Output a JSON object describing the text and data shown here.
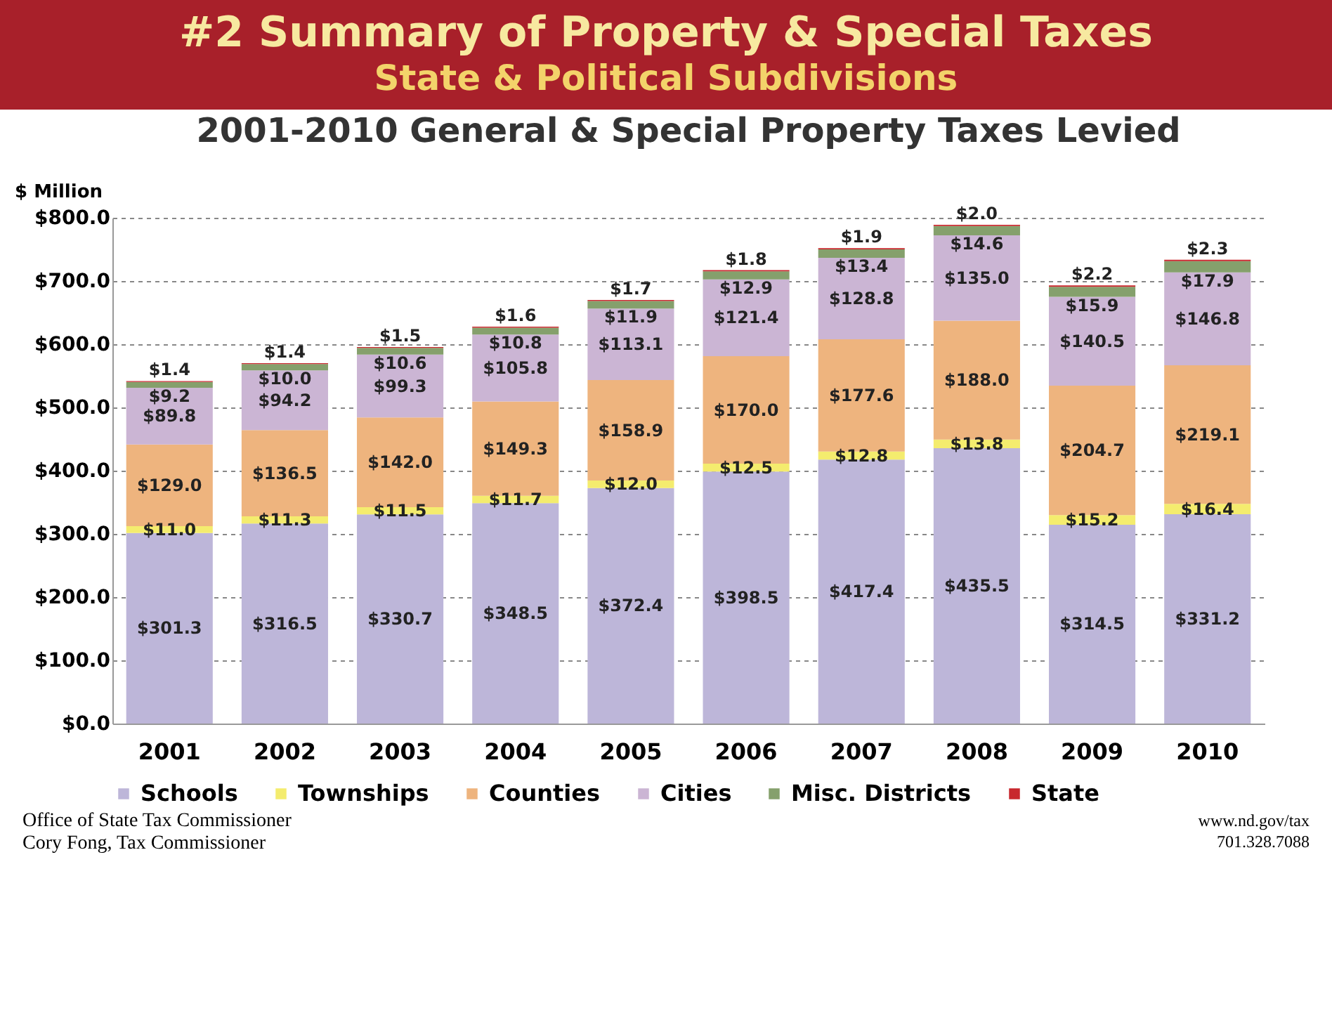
{
  "chart_data": {
    "type": "bar",
    "stacked": true,
    "title": "2001-2010 General & Special Property Taxes Levied",
    "ylabel": "$ Million",
    "annotations": [
      "#2 Summary of Property & Special Taxes",
      "State & Political Subdivisions",
      "Office of State Tax Commissioner",
      "Cory Fong, Tax Commissioner",
      "www.nd.gov/tax",
      "701.328.7088"
    ],
    "categories": [
      "2001",
      "2002",
      "2003",
      "2004",
      "2005",
      "2006",
      "2007",
      "2008",
      "2009",
      "2010"
    ],
    "series": [
      {
        "name": "Schools",
        "color": "#bdb6d9",
        "values": [
          301.3,
          316.5,
          330.7,
          348.5,
          372.4,
          398.5,
          417.4,
          435.5,
          314.5,
          331.2
        ],
        "value_labels": [
          "$301.3",
          "$316.5",
          "$330.7",
          "$348.5",
          "$372.4",
          "$398.5",
          "$417.4",
          "$435.5",
          "$314.5",
          "$331.2"
        ]
      },
      {
        "name": "Townships",
        "color": "#f4ec6e",
        "values": [
          11.0,
          11.3,
          11.5,
          11.7,
          12.0,
          12.5,
          12.8,
          13.8,
          15.2,
          16.4
        ],
        "value_labels": [
          "$11.0",
          "$11.3",
          "$11.5",
          "$11.7",
          "$12.0",
          "$12.5",
          "$12.8",
          "$13.8",
          "$15.2",
          "$16.4"
        ]
      },
      {
        "name": "Counties",
        "color": "#eeb47e",
        "values": [
          129.0,
          136.5,
          142.0,
          149.3,
          158.9,
          170.0,
          177.6,
          188.0,
          204.7,
          219.1
        ],
        "value_labels": [
          "$129.0",
          "$136.5",
          "$142.0",
          "$149.3",
          "$158.9",
          "$170.0",
          "$177.6",
          "$188.0",
          "$204.7",
          "$219.1"
        ]
      },
      {
        "name": "Cities",
        "color": "#cbb5d4",
        "values": [
          89.8,
          94.2,
          99.3,
          105.8,
          113.1,
          121.4,
          128.8,
          135.0,
          140.5,
          146.8
        ],
        "value_labels": [
          "$89.8",
          "$94.2",
          "$99.3",
          "$105.8",
          "$113.1",
          "$121.4",
          "$128.8",
          "$135.0",
          "$140.5",
          "$146.8"
        ]
      },
      {
        "name": "Misc. Districts",
        "color": "#85a06c",
        "values": [
          9.2,
          10.0,
          10.6,
          10.8,
          11.9,
          12.9,
          13.4,
          14.6,
          15.9,
          17.9
        ],
        "value_labels": [
          "$9.2",
          "$10.0",
          "$10.6",
          "$10.8",
          "$11.9",
          "$12.9",
          "$13.4",
          "$14.6",
          "$15.9",
          "$17.9"
        ]
      },
      {
        "name": "State",
        "color": "#c8282e",
        "values": [
          1.4,
          1.4,
          1.5,
          1.6,
          1.7,
          1.8,
          1.9,
          2.0,
          2.2,
          2.3
        ],
        "value_labels": [
          "$1.4",
          "$1.4",
          "$1.5",
          "$1.6",
          "$1.7",
          "$1.8",
          "$1.9",
          "$2.0",
          "$2.2",
          "$2.3"
        ]
      }
    ],
    "ylim": [
      0,
      800
    ],
    "yticks": [
      {
        "value": 0,
        "label": "$0.0"
      },
      {
        "value": 100,
        "label": "$100.0"
      },
      {
        "value": 200,
        "label": "$200.0"
      },
      {
        "value": 300,
        "label": "$300.0"
      },
      {
        "value": 400,
        "label": "$400.0"
      },
      {
        "value": 500,
        "label": "$500.0"
      },
      {
        "value": 600,
        "label": "$600.0"
      },
      {
        "value": 700,
        "label": "$700.0"
      },
      {
        "value": 800,
        "label": "$800.0"
      }
    ],
    "grid": "y",
    "legend": "bottom"
  }
}
